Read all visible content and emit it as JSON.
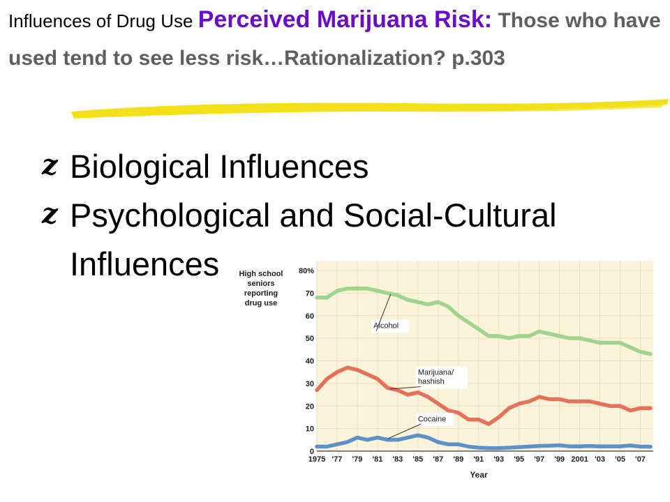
{
  "title": {
    "prefix": "Influences of Drug Use ",
    "accent": "Perceived Marijuana Risk:",
    "rest": " Those who have used tend to see less risk…Rationalization?  p.303"
  },
  "colors": {
    "accent": "#6A0DC9",
    "rest": "#5F5F5F",
    "underline": "#F2E01A",
    "chart_bg": "#FBF4DA",
    "grid": "#E7DEC0",
    "alcohol": "#9ED48E",
    "marijuana": "#E4725A",
    "cocaine": "#5D91C7"
  },
  "bullets": [
    {
      "mark": "z",
      "text": "Biological Influences"
    },
    {
      "mark": "z",
      "text": "Psychological and Social-Cultural Influences"
    }
  ],
  "chart_data": {
    "type": "line",
    "ylabel": "High school seniors reporting drug use",
    "xlabel": "Year",
    "ylim": [
      0,
      80
    ],
    "yticks": [
      "0",
      "10",
      "20",
      "30",
      "40",
      "50",
      "60",
      "70",
      "80%"
    ],
    "xticks": [
      "1975",
      "'77",
      "'79",
      "'81",
      "'83",
      "'85",
      "'87",
      "'89",
      "'91",
      "'93",
      "'95",
      "'97",
      "'99",
      "2001",
      "'03",
      "'05",
      "'07"
    ],
    "x": [
      1975,
      1976,
      1977,
      1978,
      1979,
      1980,
      1981,
      1982,
      1983,
      1984,
      1985,
      1986,
      1987,
      1988,
      1989,
      1990,
      1991,
      1992,
      1993,
      1994,
      1995,
      1996,
      1997,
      1998,
      1999,
      2000,
      2001,
      2002,
      2003,
      2004,
      2005,
      2006,
      2007,
      2008
    ],
    "xlim": [
      1975,
      2008
    ],
    "grid": true,
    "series": [
      {
        "name": "Alcohol",
        "values": [
          68,
          68,
          71,
          72,
          72,
          72,
          71,
          70,
          69,
          67,
          66,
          65,
          66,
          64,
          60,
          57,
          54,
          51,
          51,
          50,
          51,
          51,
          53,
          52,
          51,
          50,
          50,
          49,
          48,
          48,
          48,
          46,
          44,
          43
        ]
      },
      {
        "name": "Marijuana/ hashish",
        "values": [
          27,
          32,
          35,
          37,
          36,
          34,
          32,
          28,
          27,
          25,
          26,
          24,
          21,
          18,
          17,
          14,
          14,
          12,
          15,
          19,
          21,
          22,
          24,
          23,
          23,
          22,
          22,
          22,
          21,
          20,
          20,
          18,
          19,
          19
        ]
      },
      {
        "name": "Cocaine",
        "values": [
          2,
          2,
          3,
          4,
          6,
          5,
          6,
          5,
          5,
          6,
          7,
          6,
          4,
          3,
          3,
          2,
          1.5,
          1.3,
          1.3,
          1.5,
          1.8,
          2,
          2.3,
          2.4,
          2.6,
          2.1,
          2.1,
          2.3,
          2.1,
          2.1,
          2.1,
          2.5,
          2,
          1.9
        ]
      }
    ]
  }
}
